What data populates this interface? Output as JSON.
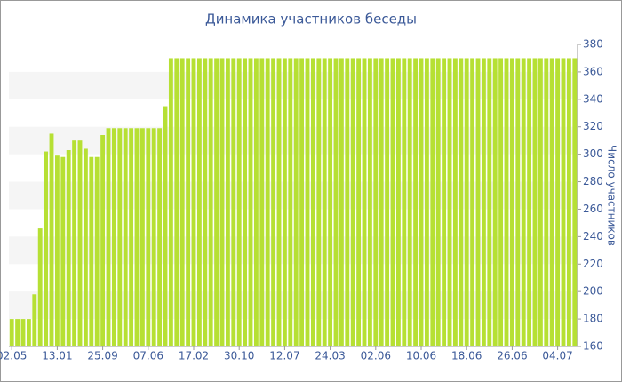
{
  "chart_data": {
    "type": "bar",
    "title": "Динамика участников беседы",
    "y_label": "Число участников",
    "categories": [
      "02.05",
      null,
      null,
      null,
      null,
      null,
      null,
      null,
      "13.01",
      null,
      null,
      null,
      null,
      null,
      null,
      null,
      "25.09",
      null,
      null,
      null,
      null,
      null,
      null,
      null,
      "07.06",
      null,
      null,
      null,
      null,
      null,
      null,
      null,
      "17.02",
      null,
      null,
      null,
      null,
      null,
      null,
      null,
      "30.10",
      null,
      null,
      null,
      null,
      null,
      null,
      null,
      "12.07",
      null,
      null,
      null,
      null,
      null,
      null,
      null,
      "24.03",
      null,
      null,
      null,
      null,
      null,
      null,
      null,
      "02.06",
      null,
      null,
      null,
      null,
      null,
      null,
      null,
      "10.06",
      null,
      null,
      null,
      null,
      null,
      null,
      null,
      "18.06",
      null,
      null,
      null,
      null,
      null,
      null,
      null,
      "26.06",
      null,
      null,
      null,
      null,
      null,
      null,
      null,
      "04.07",
      null,
      null,
      null
    ],
    "values": [
      180,
      180,
      180,
      180,
      198,
      246,
      302,
      315,
      299,
      298,
      303,
      310,
      310,
      304,
      298,
      298,
      314,
      319,
      319,
      319,
      319,
      319,
      319,
      319,
      319,
      319,
      319,
      335,
      370,
      370,
      370,
      370,
      370,
      370,
      370,
      370,
      370,
      370,
      370,
      370,
      370,
      370,
      370,
      370,
      370,
      370,
      370,
      370,
      370,
      370,
      370,
      370,
      370,
      370,
      370,
      370,
      370,
      370,
      370,
      370,
      370,
      370,
      370,
      370,
      370,
      370,
      370,
      370,
      370,
      370,
      370,
      370,
      370,
      370,
      370,
      370,
      370,
      370,
      370,
      370,
      370,
      370,
      370,
      370,
      370,
      370,
      370,
      370,
      370,
      370,
      370,
      370,
      370,
      370,
      370,
      370,
      370,
      370,
      370,
      370
    ],
    "color": "#b6e034",
    "ylim": [
      160,
      380
    ],
    "yticks": [
      160,
      180,
      200,
      220,
      240,
      260,
      280,
      300,
      320,
      340,
      360,
      380
    ],
    "grid": true
  }
}
